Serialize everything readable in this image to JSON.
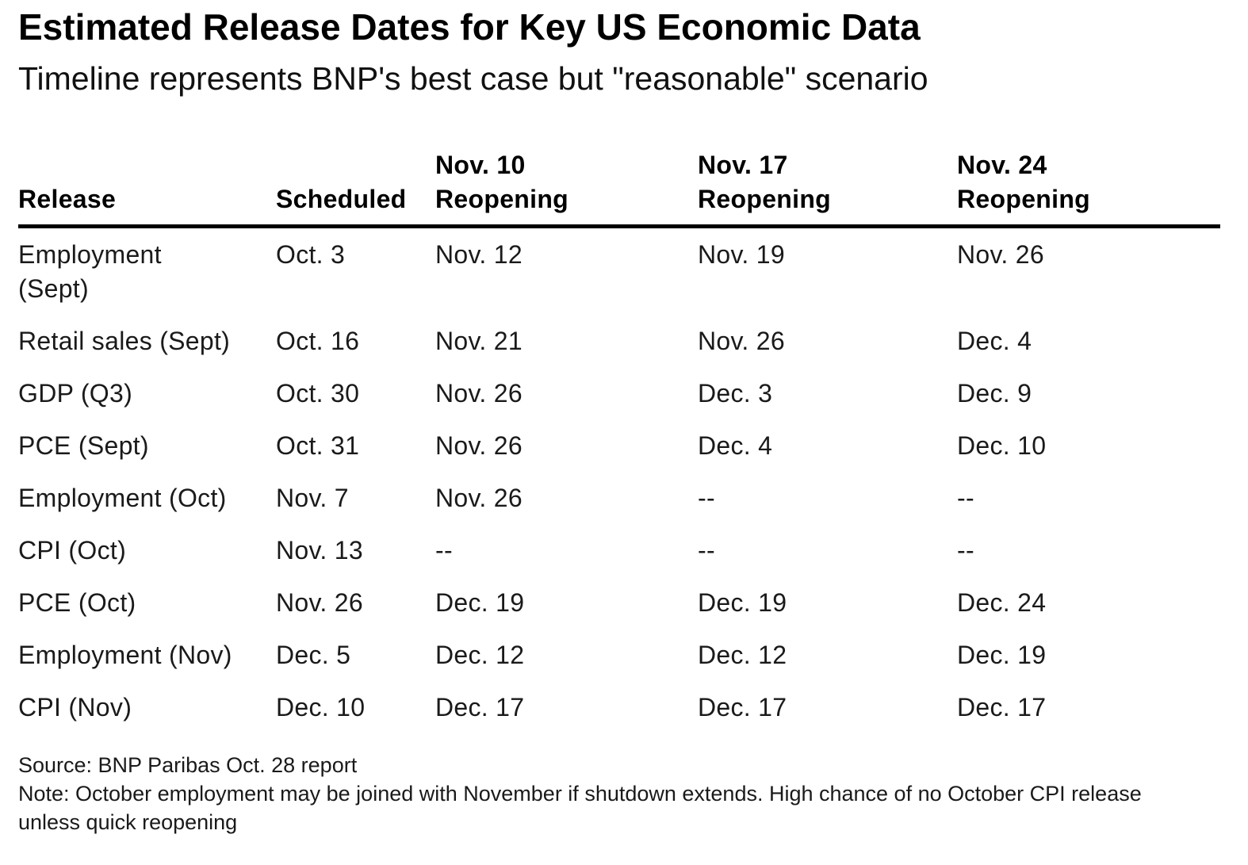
{
  "title": "Estimated Release Dates for Key US Economic Data",
  "subtitle": "Timeline represents BNP's best case but \"reasonable\" scenario",
  "colors": {
    "background": "#ffffff",
    "text": "#000000",
    "header_rule": "#000000"
  },
  "chart_data": {
    "type": "table",
    "title": "Estimated Release Dates for Key US Economic Data",
    "subtitle": "Timeline represents BNP's best case but \"reasonable\" scenario",
    "columns": [
      "Release",
      "Scheduled",
      "Nov. 10\nReopening",
      "Nov. 17\nReopening",
      "Nov. 24\nReopening"
    ],
    "rows": [
      [
        "Employment\n(Sept)",
        "Oct. 3",
        "Nov. 12",
        "Nov. 19",
        "Nov. 26"
      ],
      [
        "Retail sales (Sept)",
        "Oct. 16",
        "Nov. 21",
        "Nov. 26",
        "Dec. 4"
      ],
      [
        "GDP (Q3)",
        "Oct. 30",
        "Nov. 26",
        "Dec. 3",
        "Dec. 9"
      ],
      [
        "PCE (Sept)",
        "Oct. 31",
        "Nov. 26",
        "Dec. 4",
        "Dec. 10"
      ],
      [
        "Employment (Oct)",
        "Nov. 7",
        "Nov. 26",
        "--",
        "--"
      ],
      [
        "CPI (Oct)",
        "Nov. 13",
        "--",
        "--",
        "--"
      ],
      [
        "PCE (Oct)",
        "Nov. 26",
        "Dec. 19",
        "Dec. 19",
        "Dec. 24"
      ],
      [
        "Employment (Nov)",
        "Dec. 5",
        "Dec. 12",
        "Dec. 12",
        "Dec. 19"
      ],
      [
        "CPI (Nov)",
        "Dec. 10",
        "Dec. 17",
        "Dec. 17",
        "Dec. 17"
      ]
    ]
  },
  "footer": {
    "source": "Source: BNP Paribas Oct. 28 report",
    "note": "Note: October employment may be joined with November if shutdown extends. High chance of no October CPI release unless quick reopening"
  }
}
